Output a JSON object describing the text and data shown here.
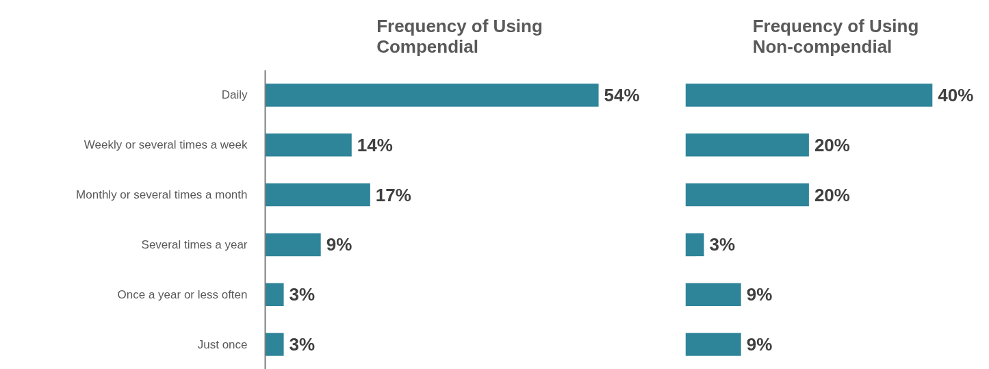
{
  "chart_data": [
    {
      "type": "bar",
      "orientation": "horizontal",
      "title": "Frequency of Using\nCompendial",
      "categories": [
        "Daily",
        "Weekly or several times a week",
        "Monthly or several times a month",
        "Several times a year",
        "Once a year or less often",
        "Just once"
      ],
      "values": [
        54,
        14,
        17,
        9,
        3,
        3
      ],
      "value_labels": [
        "54%",
        "14%",
        "17%",
        "9%",
        "3%",
        "3%"
      ],
      "color": "#2e8499",
      "tick_labels": "y"
    },
    {
      "type": "bar",
      "orientation": "horizontal",
      "title": "Frequency of Using\nNon-compendial",
      "categories": [
        null,
        null,
        null,
        null,
        null,
        null
      ],
      "values": [
        40,
        20,
        20,
        3,
        9,
        9
      ],
      "value_labels": [
        "40%",
        "20%",
        "20%",
        "3%",
        "9%",
        "9%"
      ],
      "color": "#2e8499",
      "tick_labels": false
    }
  ]
}
